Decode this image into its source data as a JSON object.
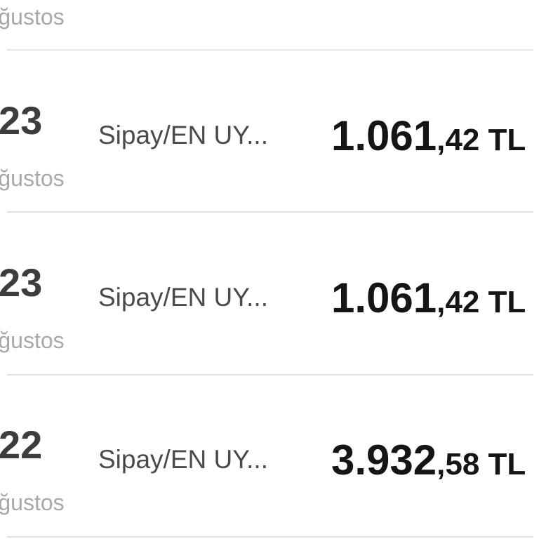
{
  "transactions": [
    {
      "day": "",
      "month": "Ağustos",
      "description": "",
      "amount_int": "",
      "amount_frac": ""
    },
    {
      "day": "23",
      "month": "Ağustos",
      "description": "Sipay/EN UY...",
      "amount_int": "1.061",
      "amount_frac": ",42 TL"
    },
    {
      "day": "23",
      "month": "Ağustos",
      "description": "Sipay/EN UY...",
      "amount_int": "1.061",
      "amount_frac": ",42 TL"
    },
    {
      "day": "22",
      "month": "Ağustos",
      "description": "Sipay/EN UY...",
      "amount_int": "3.932",
      "amount_frac": ",58 TL"
    }
  ]
}
